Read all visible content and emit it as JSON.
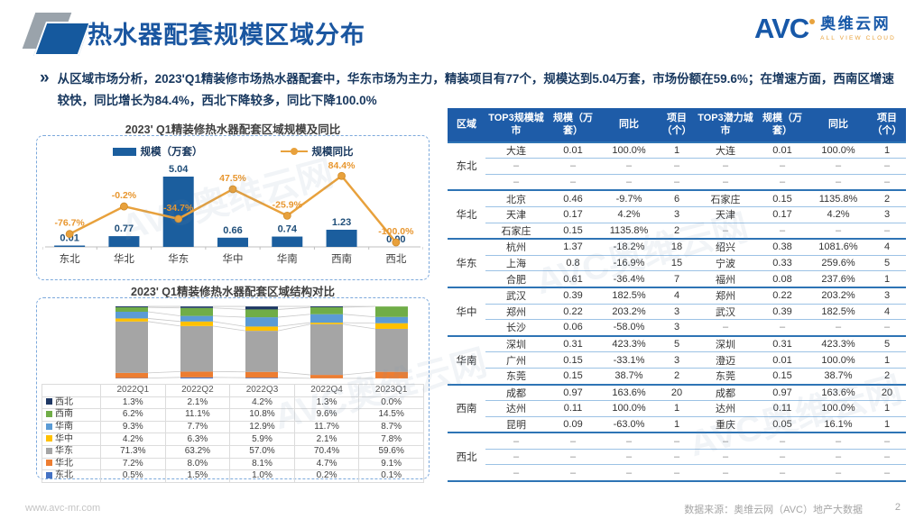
{
  "header": {
    "title": "热水器配套规模区域分布",
    "logo": {
      "avc": "AVC",
      "cn": "奥维云网",
      "en": "ALL VIEW CLOUD"
    }
  },
  "intro": {
    "bullet": "»",
    "text": "从区域市场分析，2023'Q1精装修市场热水器配套中，华东市场为主力，精装项目有77个，规模达到5.04万套，市场份额在59.6%；在增速方面，西南区增速较快，同比增长为84.4%，西北下降较多，同比下降100.0%"
  },
  "chart_data": [
    {
      "type": "bar+line",
      "title": "2023' Q1精装修热水器配套区域规模及同比",
      "categories": [
        "东北",
        "华北",
        "华东",
        "华中",
        "华南",
        "西南",
        "西北"
      ],
      "series": [
        {
          "name": "规模（万套）",
          "type": "bar",
          "color": "#1B5E9E",
          "values": [
            0.01,
            0.77,
            5.04,
            0.66,
            0.74,
            1.23,
            0.0
          ],
          "labels": [
            "0.01",
            "0.77",
            "5.04",
            "0.66",
            "0.74",
            "1.23",
            "0.00"
          ]
        },
        {
          "name": "规模同比",
          "type": "line",
          "color": "#E8A13C",
          "values": [
            -76.7,
            -0.2,
            -34.7,
            47.5,
            -25.9,
            84.4,
            -100.0
          ],
          "labels": [
            "-76.7%",
            "-0.2%",
            "-34.7%",
            "47.5%",
            "-25.9%",
            "84.4%",
            "-100.0%"
          ]
        }
      ],
      "ylim_bar": [
        0,
        5.5
      ],
      "ylim_line": [
        -110,
        100
      ],
      "legend_position": "top",
      "grid": false
    },
    {
      "type": "stacked-bar-100",
      "title": "2023' Q1精装修热水器配套区域结构对比",
      "categories": [
        "2022Q1",
        "2022Q2",
        "2022Q3",
        "2022Q4",
        "2023Q1"
      ],
      "stack_order_bottom_to_top": [
        "东北",
        "华北",
        "华东",
        "华中",
        "华南",
        "西南",
        "西北"
      ],
      "series": [
        {
          "name": "西北",
          "color": "#1F3864",
          "values": [
            1.3,
            2.1,
            4.2,
            1.3,
            0.0
          ],
          "labels": [
            "1.3%",
            "2.1%",
            "4.2%",
            "1.3%",
            "0.0%"
          ]
        },
        {
          "name": "西南",
          "color": "#70AD47",
          "values": [
            6.2,
            11.1,
            10.8,
            9.6,
            14.5
          ],
          "labels": [
            "6.2%",
            "11.1%",
            "10.8%",
            "9.6%",
            "14.5%"
          ]
        },
        {
          "name": "华南",
          "color": "#5B9BD5",
          "values": [
            9.3,
            7.7,
            12.9,
            11.7,
            8.7
          ],
          "labels": [
            "9.3%",
            "7.7%",
            "12.9%",
            "11.7%",
            "8.7%"
          ]
        },
        {
          "name": "华中",
          "color": "#FFC000",
          "values": [
            4.2,
            6.3,
            5.9,
            2.1,
            7.8
          ],
          "labels": [
            "4.2%",
            "6.3%",
            "5.9%",
            "2.1%",
            "7.8%"
          ]
        },
        {
          "name": "华东",
          "color": "#A5A5A5",
          "values": [
            71.3,
            63.2,
            57.0,
            70.4,
            59.6
          ],
          "labels": [
            "71.3%",
            "63.2%",
            "57.0%",
            "70.4%",
            "59.6%"
          ]
        },
        {
          "name": "华北",
          "color": "#ED7D31",
          "values": [
            7.2,
            8.0,
            8.1,
            4.7,
            9.1
          ],
          "labels": [
            "7.2%",
            "8.0%",
            "8.1%",
            "4.7%",
            "9.1%"
          ]
        },
        {
          "name": "东北",
          "color": "#4472C4",
          "values": [
            0.5,
            1.5,
            1.0,
            0.2,
            0.1
          ],
          "labels": [
            "0.5%",
            "1.5%",
            "1.0%",
            "0.2%",
            "0.1%"
          ]
        }
      ]
    }
  ],
  "region_table": {
    "headers": [
      "区域",
      "TOP3规模城市",
      "规模（万套）",
      "同比",
      "项目（个）",
      "TOP3潜力城市",
      "规模（万套）",
      "同比",
      "项目（个）"
    ],
    "groups": [
      {
        "region": "东北",
        "rows": [
          [
            "大连",
            "0.01",
            "100.0%",
            "1",
            "大连",
            "0.01",
            "100.0%",
            "1"
          ],
          [
            "–",
            "–",
            "–",
            "–",
            "–",
            "–",
            "–",
            "–"
          ],
          [
            "–",
            "–",
            "–",
            "–",
            "–",
            "–",
            "–",
            "–"
          ]
        ]
      },
      {
        "region": "华北",
        "rows": [
          [
            "北京",
            "0.46",
            "-9.7%",
            "6",
            "石家庄",
            "0.15",
            "1135.8%",
            "2"
          ],
          [
            "天津",
            "0.17",
            "4.2%",
            "3",
            "天津",
            "0.17",
            "4.2%",
            "3"
          ],
          [
            "石家庄",
            "0.15",
            "1135.8%",
            "2",
            "–",
            "–",
            "–",
            "–"
          ]
        ]
      },
      {
        "region": "华东",
        "rows": [
          [
            "杭州",
            "1.37",
            "-18.2%",
            "18",
            "绍兴",
            "0.38",
            "1081.6%",
            "4"
          ],
          [
            "上海",
            "0.8",
            "-16.9%",
            "15",
            "宁波",
            "0.33",
            "259.6%",
            "5"
          ],
          [
            "合肥",
            "0.61",
            "-36.4%",
            "7",
            "福州",
            "0.08",
            "237.6%",
            "1"
          ]
        ]
      },
      {
        "region": "华中",
        "rows": [
          [
            "武汉",
            "0.39",
            "182.5%",
            "4",
            "郑州",
            "0.22",
            "203.2%",
            "3"
          ],
          [
            "郑州",
            "0.22",
            "203.2%",
            "3",
            "武汉",
            "0.39",
            "182.5%",
            "4"
          ],
          [
            "长沙",
            "0.06",
            "-58.0%",
            "3",
            "–",
            "–",
            "–",
            "–"
          ]
        ]
      },
      {
        "region": "华南",
        "rows": [
          [
            "深圳",
            "0.31",
            "423.3%",
            "5",
            "深圳",
            "0.31",
            "423.3%",
            "5"
          ],
          [
            "广州",
            "0.15",
            "-33.1%",
            "3",
            "澄迈",
            "0.01",
            "100.0%",
            "1"
          ],
          [
            "东莞",
            "0.15",
            "38.7%",
            "2",
            "东莞",
            "0.15",
            "38.7%",
            "2"
          ]
        ]
      },
      {
        "region": "西南",
        "rows": [
          [
            "成都",
            "0.97",
            "163.6%",
            "20",
            "成都",
            "0.97",
            "163.6%",
            "20"
          ],
          [
            "达州",
            "0.11",
            "100.0%",
            "1",
            "达州",
            "0.11",
            "100.0%",
            "1"
          ],
          [
            "昆明",
            "0.09",
            "-63.0%",
            "1",
            "重庆",
            "0.05",
            "16.1%",
            "1"
          ]
        ]
      },
      {
        "region": "西北",
        "rows": [
          [
            "–",
            "–",
            "–",
            "–",
            "–",
            "–",
            "–",
            "–"
          ],
          [
            "–",
            "–",
            "–",
            "–",
            "–",
            "–",
            "–",
            "–"
          ],
          [
            "–",
            "–",
            "–",
            "–",
            "–",
            "–",
            "–",
            "–"
          ]
        ]
      }
    ]
  },
  "footer": {
    "site": "www.avc-mr.com",
    "source": "数据来源：奥维云网（AVC）地产大数据",
    "page": "2"
  },
  "watermark": "AVC奥维云网",
  "colors": {
    "accent_blue": "#1A56A0",
    "bar_blue": "#1B5E9E",
    "line_orange": "#E8A13C",
    "table_header_blue": "#1E5CA8",
    "group_border_blue": "#2E74B5",
    "row_border_blue": "#9CC2E5"
  }
}
